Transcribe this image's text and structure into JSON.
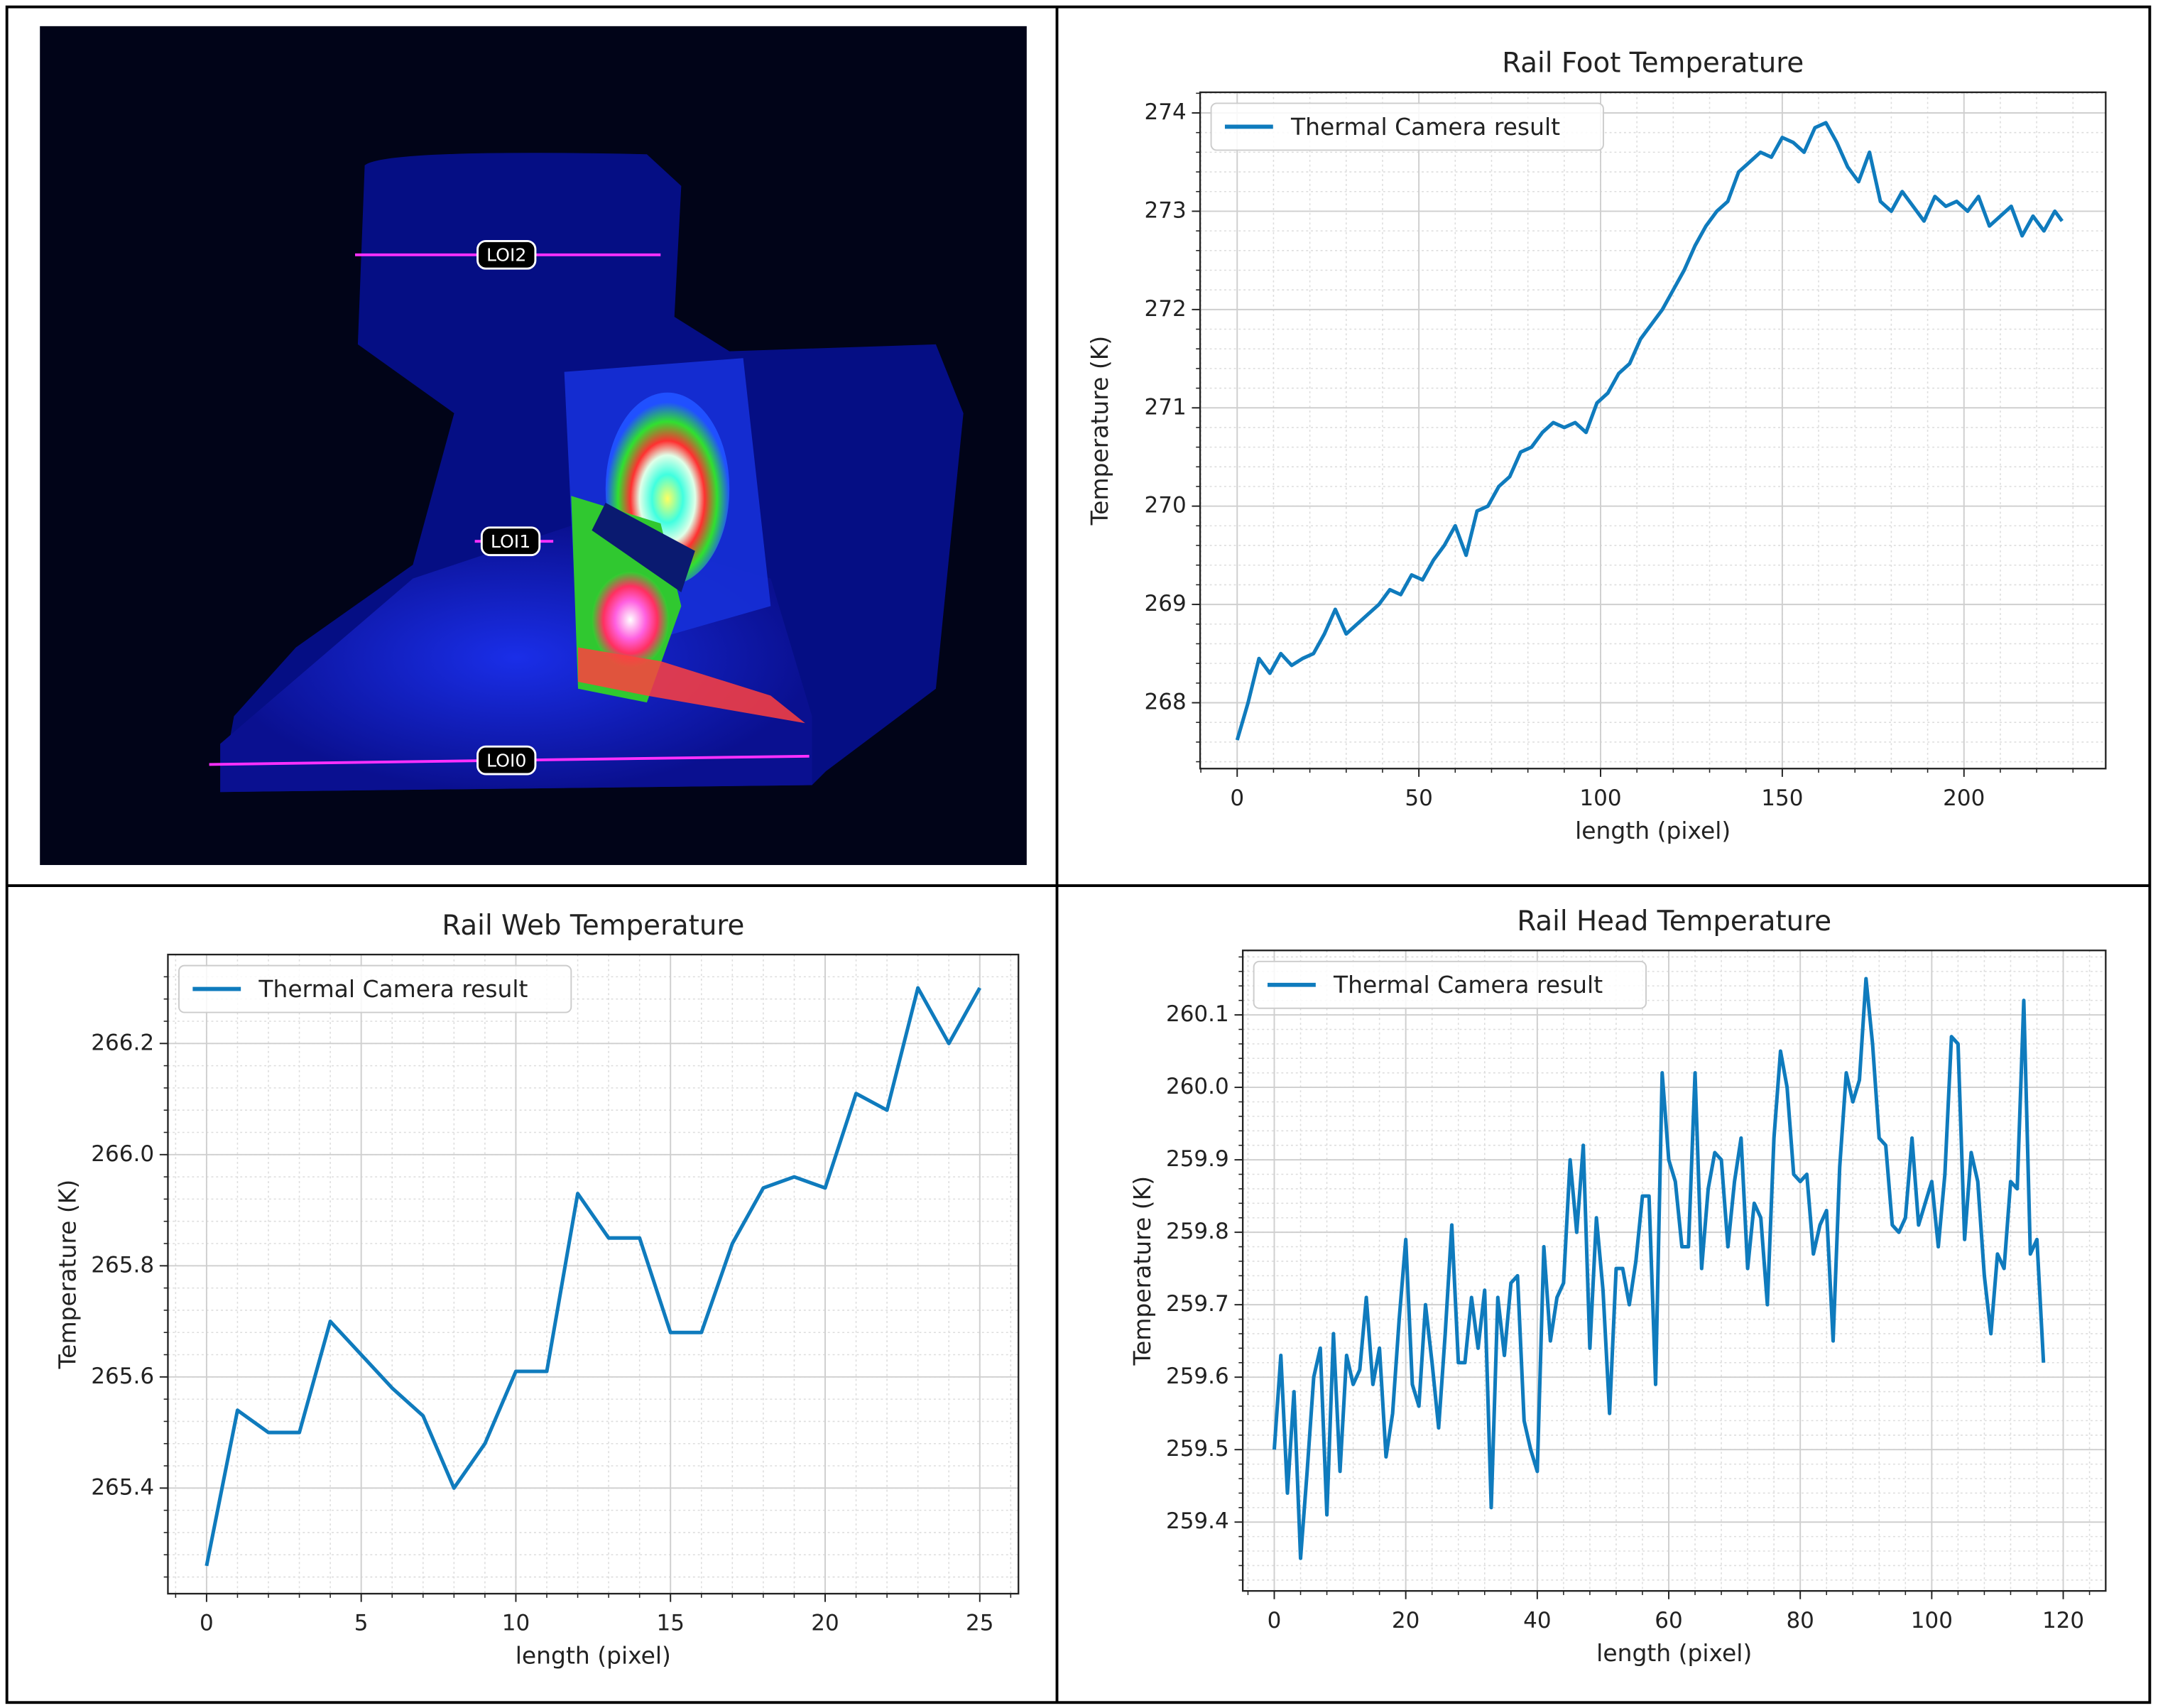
{
  "thermal_image": {
    "labels": [
      "LOI2",
      "LOI1",
      "LOI0"
    ]
  },
  "chart_data": [
    {
      "type": "line",
      "title": "Rail Foot Temperature",
      "xlabel": "length (pixel)",
      "ylabel": "Temperature (K)",
      "x": [
        0,
        3,
        6,
        9,
        12,
        15,
        18,
        21,
        24,
        27,
        30,
        33,
        36,
        39,
        42,
        45,
        48,
        51,
        54,
        57,
        60,
        63,
        66,
        69,
        72,
        75,
        78,
        81,
        84,
        87,
        90,
        93,
        96,
        99,
        102,
        105,
        108,
        111,
        114,
        117,
        120,
        123,
        126,
        129,
        132,
        135,
        138,
        141,
        144,
        147,
        150,
        153,
        156,
        159,
        162,
        165,
        168,
        171,
        174,
        177,
        180,
        183,
        186,
        189,
        192,
        195,
        198,
        201,
        204,
        207,
        210,
        213,
        216,
        219,
        222,
        225,
        227
      ],
      "series": [
        {
          "name": "Thermal Camera result",
          "color": "#0f7bbd",
          "values": [
            267.62,
            268.0,
            268.45,
            268.3,
            268.5,
            268.38,
            268.45,
            268.5,
            268.7,
            268.95,
            268.7,
            268.8,
            268.9,
            269.0,
            269.15,
            269.1,
            269.3,
            269.25,
            269.45,
            269.6,
            269.8,
            269.5,
            269.95,
            270.0,
            270.2,
            270.3,
            270.55,
            270.6,
            270.75,
            270.85,
            270.8,
            270.85,
            270.75,
            271.05,
            271.15,
            271.35,
            271.45,
            271.7,
            271.85,
            272.0,
            272.2,
            272.4,
            272.65,
            272.85,
            273.0,
            273.1,
            273.4,
            273.5,
            273.6,
            273.55,
            273.75,
            273.7,
            273.6,
            273.85,
            273.9,
            273.7,
            273.45,
            273.3,
            273.6,
            273.1,
            273.0,
            273.2,
            273.05,
            272.9,
            273.15,
            273.05,
            273.1,
            273.0,
            273.15,
            272.85,
            272.95,
            273.05,
            272.75,
            272.95,
            272.8,
            273.0,
            272.9
          ]
        }
      ],
      "xlim": [
        -10.2,
        239.0
      ],
      "xticks": [
        0,
        50,
        100,
        150,
        200
      ],
      "ylim": [
        267.33,
        274.21
      ],
      "yticks": [
        268,
        269,
        270,
        271,
        272,
        273,
        274
      ],
      "grid": true,
      "minor_grid": true,
      "legend": "upper left"
    },
    {
      "type": "line",
      "title": "Rail Web Temperature",
      "xlabel": "length (pixel)",
      "ylabel": "Temperature (K)",
      "x": [
        0,
        1,
        2,
        3,
        4,
        5,
        6,
        7,
        8,
        9,
        10,
        11,
        12,
        13,
        14,
        15,
        16,
        17,
        18,
        19,
        20,
        21,
        22,
        23,
        24,
        25
      ],
      "series": [
        {
          "name": "Thermal Camera result",
          "color": "#0f7bbd",
          "values": [
            265.26,
            265.54,
            265.5,
            265.5,
            265.7,
            265.64,
            265.58,
            265.53,
            265.4,
            265.48,
            265.61,
            265.61,
            265.93,
            265.85,
            265.85,
            265.68,
            265.68,
            265.84,
            265.94,
            265.96,
            265.94,
            266.11,
            266.08,
            266.3,
            266.2,
            266.3
          ]
        }
      ],
      "xlim": [
        -1.25,
        26.25
      ],
      "xticks": [
        0,
        5,
        10,
        15,
        20,
        25
      ],
      "ylim": [
        265.21,
        266.36
      ],
      "yticks": [
        265.4,
        265.6,
        265.8,
        {
          "value": 266,
          "label": "266.0"
        },
        266.2
      ],
      "grid": true,
      "minor_grid": true,
      "legend": "upper left"
    },
    {
      "type": "line",
      "title": "Rail Head Temperature",
      "xlabel": "length (pixel)",
      "ylabel": "Temperature (K)",
      "x": [
        0,
        1,
        2,
        3,
        4,
        5,
        6,
        7,
        8,
        9,
        10,
        11,
        12,
        13,
        14,
        15,
        16,
        17,
        18,
        19,
        20,
        21,
        22,
        23,
        24,
        25,
        26,
        27,
        28,
        29,
        30,
        31,
        32,
        33,
        34,
        35,
        36,
        37,
        38,
        39,
        40,
        41,
        42,
        43,
        44,
        45,
        46,
        47,
        48,
        49,
        50,
        51,
        52,
        53,
        54,
        55,
        56,
        57,
        58,
        59,
        60,
        61,
        62,
        63,
        64,
        65,
        66,
        67,
        68,
        69,
        70,
        71,
        72,
        73,
        74,
        75,
        76,
        77,
        78,
        79,
        80,
        81,
        82,
        83,
        84,
        85,
        86,
        87,
        88,
        89,
        90,
        91,
        92,
        93,
        94,
        95,
        96,
        97,
        98,
        99,
        100,
        101,
        102,
        103,
        104,
        105,
        106,
        107,
        108,
        109,
        110,
        111,
        112,
        113,
        114,
        115,
        116,
        117
      ],
      "series": [
        {
          "name": "Thermal Camera result",
          "color": "#0f7bbd",
          "values": [
            259.5,
            259.63,
            259.44,
            259.58,
            259.35,
            259.47,
            259.6,
            259.64,
            259.41,
            259.66,
            259.47,
            259.63,
            259.59,
            259.61,
            259.71,
            259.59,
            259.64,
            259.49,
            259.55,
            259.68,
            259.79,
            259.59,
            259.56,
            259.7,
            259.62,
            259.53,
            259.66,
            259.81,
            259.62,
            259.62,
            259.71,
            259.64,
            259.72,
            259.42,
            259.71,
            259.63,
            259.73,
            259.74,
            259.54,
            259.5,
            259.47,
            259.78,
            259.65,
            259.71,
            259.73,
            259.9,
            259.8,
            259.92,
            259.64,
            259.82,
            259.72,
            259.55,
            259.75,
            259.75,
            259.7,
            259.76,
            259.85,
            259.85,
            259.59,
            260.02,
            259.9,
            259.87,
            259.78,
            259.78,
            260.02,
            259.75,
            259.86,
            259.91,
            259.9,
            259.78,
            259.87,
            259.93,
            259.75,
            259.84,
            259.82,
            259.7,
            259.93,
            260.05,
            260.0,
            259.88,
            259.87,
            259.88,
            259.77,
            259.81,
            259.83,
            259.65,
            259.89,
            260.02,
            259.98,
            260.01,
            260.15,
            260.06,
            259.93,
            259.92,
            259.81,
            259.8,
            259.82,
            259.93,
            259.81,
            259.84,
            259.87,
            259.78,
            259.88,
            260.07,
            260.06,
            259.79,
            259.91,
            259.87,
            259.74,
            259.66,
            259.77,
            259.75,
            259.87,
            259.86,
            260.12,
            259.77,
            259.79,
            259.62
          ]
        }
      ],
      "xlim": [
        -4.79,
        126.46
      ],
      "xticks": [
        0,
        20,
        40,
        60,
        80,
        100,
        120
      ],
      "ylim": [
        259.305,
        260.189
      ],
      "yticks": [
        259.4,
        259.5,
        259.6,
        259.7,
        259.8,
        259.9,
        {
          "value": 260,
          "label": "260.0"
        },
        260.1
      ],
      "grid": true,
      "minor_grid": true,
      "legend": "upper left"
    }
  ]
}
